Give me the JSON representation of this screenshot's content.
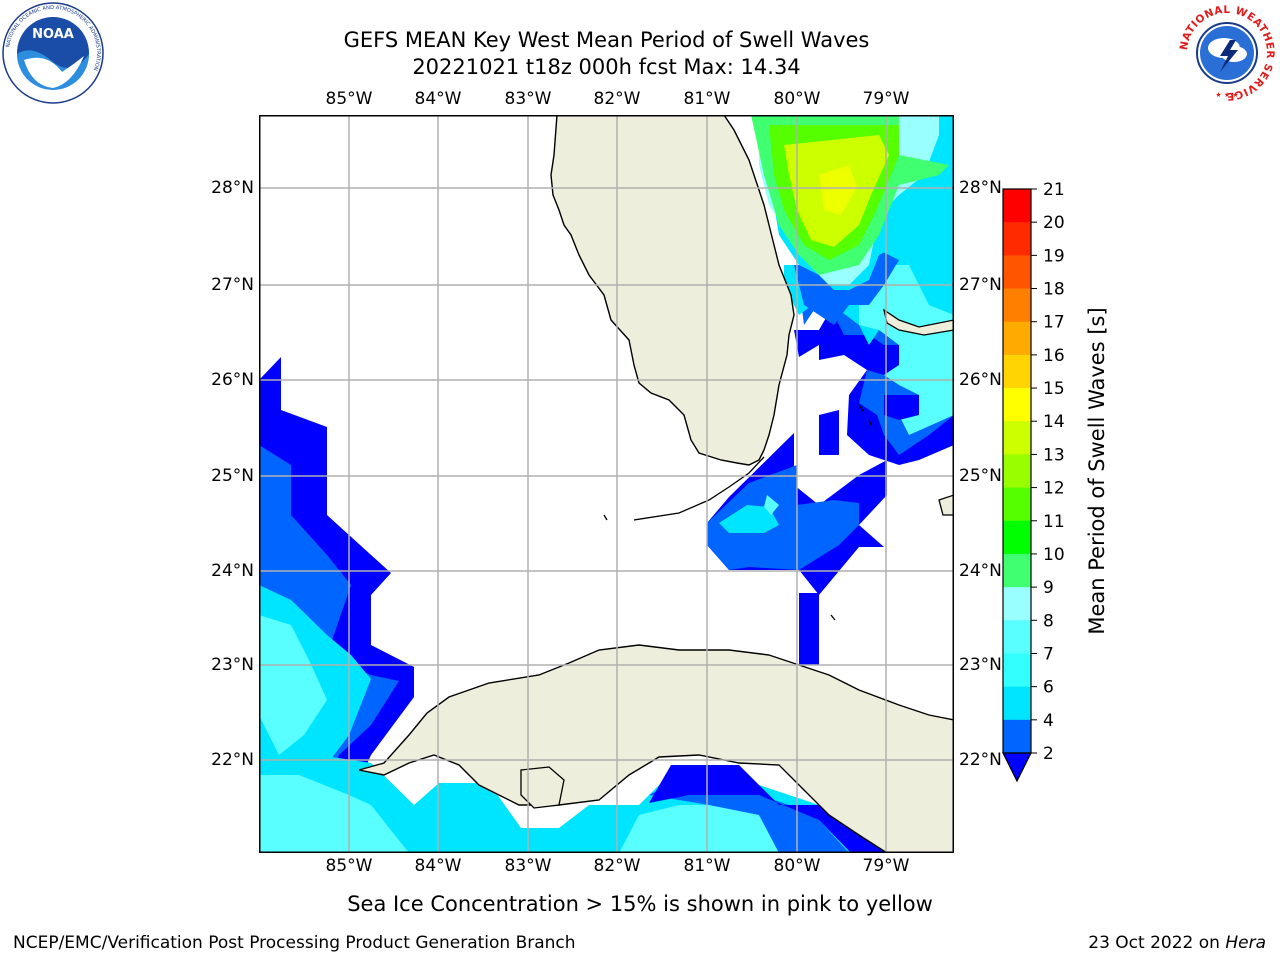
{
  "header": {
    "line1": "GEFS MEAN Key West Mean Period of Swell Waves",
    "line2": "20221021 t18z 000h fcst   Max: 14.34"
  },
  "axes": {
    "lon_labels": [
      "85°W",
      "84°W",
      "83°W",
      "82°W",
      "81°W",
      "80°W",
      "79°W"
    ],
    "lat_labels": [
      "28°N",
      "27°N",
      "26°N",
      "25°N",
      "24°N",
      "23°N",
      "22°N"
    ]
  },
  "colorbar": {
    "label": "Mean Period of Swell Waves [s]",
    "ticks": [
      "2",
      "4",
      "6",
      "7",
      "8",
      "9",
      "10",
      "11",
      "12",
      "13",
      "14",
      "15",
      "16",
      "17",
      "18",
      "19",
      "20",
      "21"
    ],
    "colors": [
      "#0000ff",
      "#0066ff",
      "#00e5ff",
      "#33ffff",
      "#59ffff",
      "#99ffff",
      "#40ff70",
      "#00ff00",
      "#55ff00",
      "#99ff00",
      "#ccff00",
      "#ffff00",
      "#ffd400",
      "#ffaa00",
      "#ff7f00",
      "#ff5500",
      "#ff2a00",
      "#ff0000"
    ]
  },
  "logos": {
    "noaa_text": "NOAA",
    "noaa_ring": "NATIONAL OCEANIC AND ATMOSPHERIC ADMINISTRATION",
    "noaa_ring_bottom": "U.S. DEPARTMENT OF COMMERCE",
    "nws_ring": "NATIONAL WEATHER SERVICE"
  },
  "note": "Sea Ice Concentration > 15% is shown in pink to yellow",
  "footer": {
    "left": "NCEP/EMC/Verification Post Processing Product Generation Branch",
    "right_date": "23 Oct 2022 on ",
    "right_host": "Hera"
  },
  "colors": {
    "land": "#eeeedc",
    "grid": "#b0b0b0"
  }
}
